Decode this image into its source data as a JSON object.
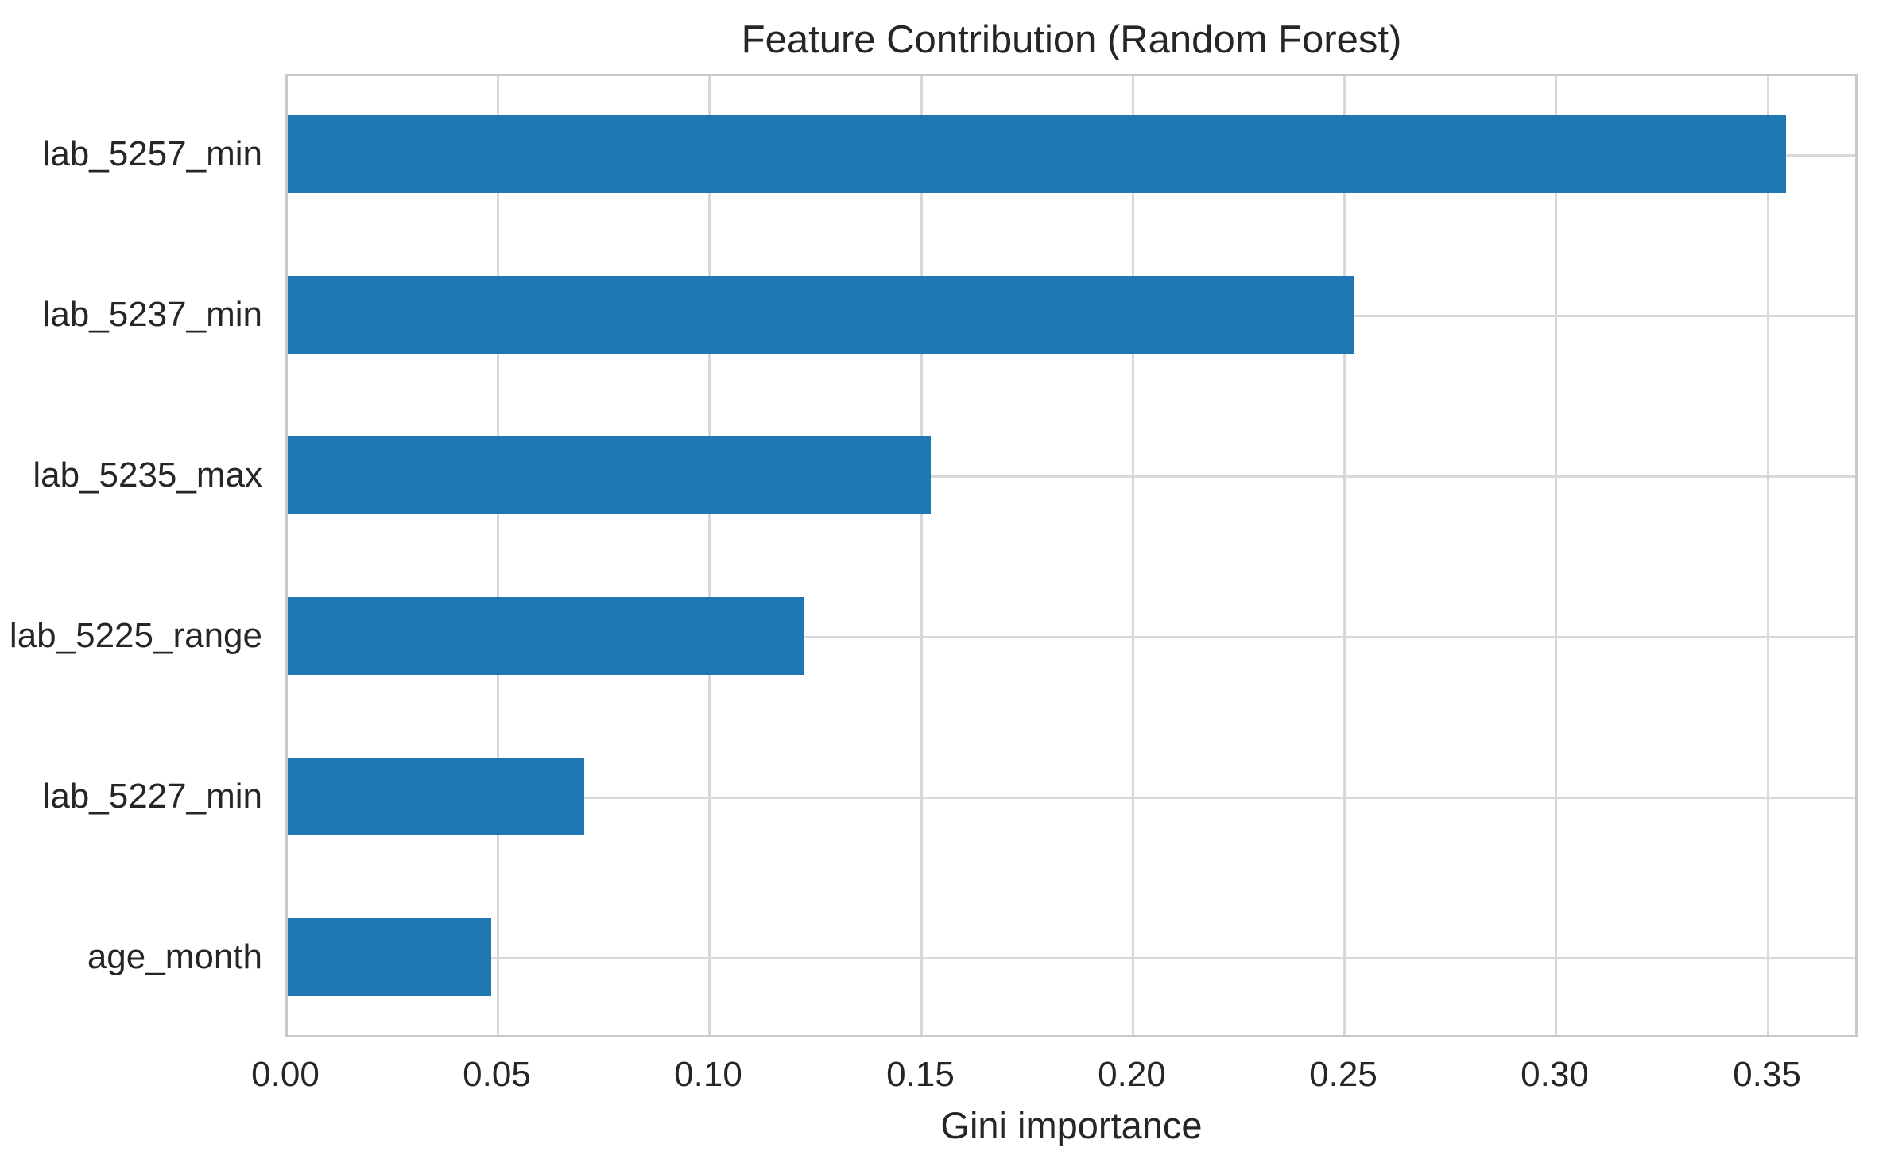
{
  "chart_data": {
    "type": "bar",
    "orientation": "horizontal",
    "title": "Feature Contribution (Random Forest)",
    "xlabel": "Gini importance",
    "ylabel": "",
    "categories": [
      "lab_5257_min",
      "lab_5237_min",
      "lab_5235_max",
      "lab_5225_range",
      "lab_5227_min",
      "age_month"
    ],
    "values": [
      0.354,
      0.252,
      0.152,
      0.122,
      0.07,
      0.048
    ],
    "xlim": [
      0,
      0.3715
    ],
    "xticks": [
      0.0,
      0.05,
      0.1,
      0.15,
      0.2,
      0.25,
      0.3,
      0.35
    ],
    "xtick_labels": [
      "0.00",
      "0.05",
      "0.10",
      "0.15",
      "0.20",
      "0.25",
      "0.30",
      "0.35"
    ],
    "grid": "both",
    "legend": "none",
    "colors": {
      "bar": "#1f77b4",
      "grid": "#d8d8d8",
      "spine": "#c9c9c9",
      "text": "#262626",
      "background": "#ffffff"
    }
  }
}
